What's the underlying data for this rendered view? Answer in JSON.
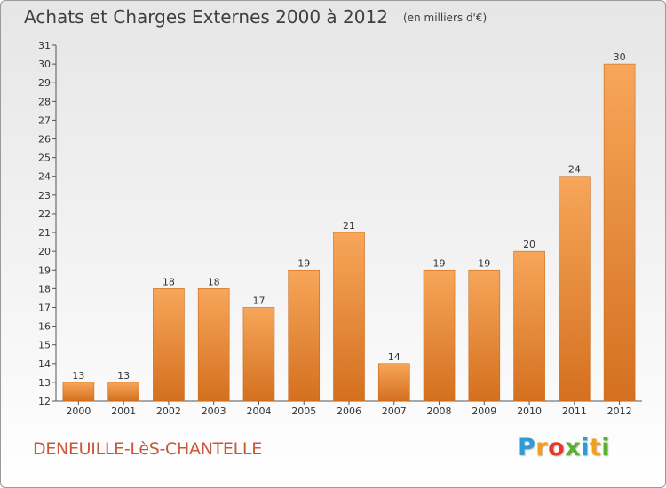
{
  "header": {
    "title": "Achats et Charges Externes 2000 à 2012",
    "unit": "(en milliers d'€)"
  },
  "footer": {
    "commune": "DENEUILLE-LèS-CHANTELLE",
    "logo_letters": [
      "P",
      "r",
      "o",
      "x",
      "i",
      "t",
      "i"
    ],
    "logo_colors": [
      "#2f9bd6",
      "#f0a020",
      "#e8372e",
      "#58b132",
      "#2f9bd6",
      "#f0a020",
      "#58b132"
    ]
  },
  "colors": {
    "bar_light": "#f7a65a",
    "bar_dark": "#d4701f",
    "axis": "#555555",
    "grid_text": "#333333"
  },
  "chart_data": {
    "type": "bar",
    "title": "Achats et Charges Externes 2000 à 2012",
    "subtitle": "(en milliers d'€)",
    "xlabel": "",
    "ylabel": "",
    "categories": [
      "2000",
      "2001",
      "2002",
      "2003",
      "2004",
      "2005",
      "2006",
      "2007",
      "2008",
      "2009",
      "2010",
      "2011",
      "2012"
    ],
    "values": [
      13,
      13,
      18,
      18,
      17,
      19,
      21,
      14,
      19,
      19,
      20,
      24,
      30
    ],
    "ylim": [
      12,
      31
    ],
    "yticks": [
      12,
      13,
      14,
      15,
      16,
      17,
      18,
      19,
      20,
      21,
      22,
      23,
      24,
      25,
      26,
      27,
      28,
      29,
      30,
      31
    ],
    "grid": false,
    "legend": "none"
  }
}
